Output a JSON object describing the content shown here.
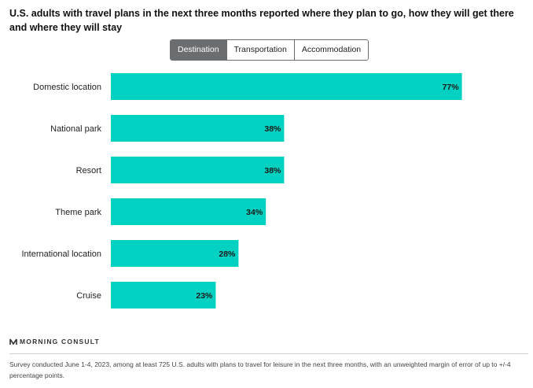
{
  "header": {
    "title": "U.S. adults with travel plans in the next three months reported where they plan to go, how they will get there and where they will stay"
  },
  "tabs": [
    {
      "label": "Destination",
      "active": true
    },
    {
      "label": "Transportation",
      "active": false
    },
    {
      "label": "Accommodation",
      "active": false
    }
  ],
  "colors": {
    "bar": "#00d1c1",
    "active_tab": "#6b6e70"
  },
  "chart_data": {
    "type": "bar",
    "orientation": "horizontal",
    "categories": [
      "Domestic location",
      "National park",
      "Resort",
      "Theme park",
      "International location",
      "Cruise"
    ],
    "values": [
      77,
      38,
      38,
      34,
      28,
      23
    ],
    "value_labels": [
      "77%",
      "38%",
      "38%",
      "34%",
      "28%",
      "23%"
    ],
    "xlim": [
      0,
      100
    ],
    "grid": false,
    "legend": "none"
  },
  "footer": {
    "brand": "MORNING CONSULT",
    "note": "Survey conducted June 1-4, 2023, among at least 725 U.S. adults with plans to travel for leisure in the next three months, with an unweighted margin of error of up to +/-4 percentage points."
  }
}
